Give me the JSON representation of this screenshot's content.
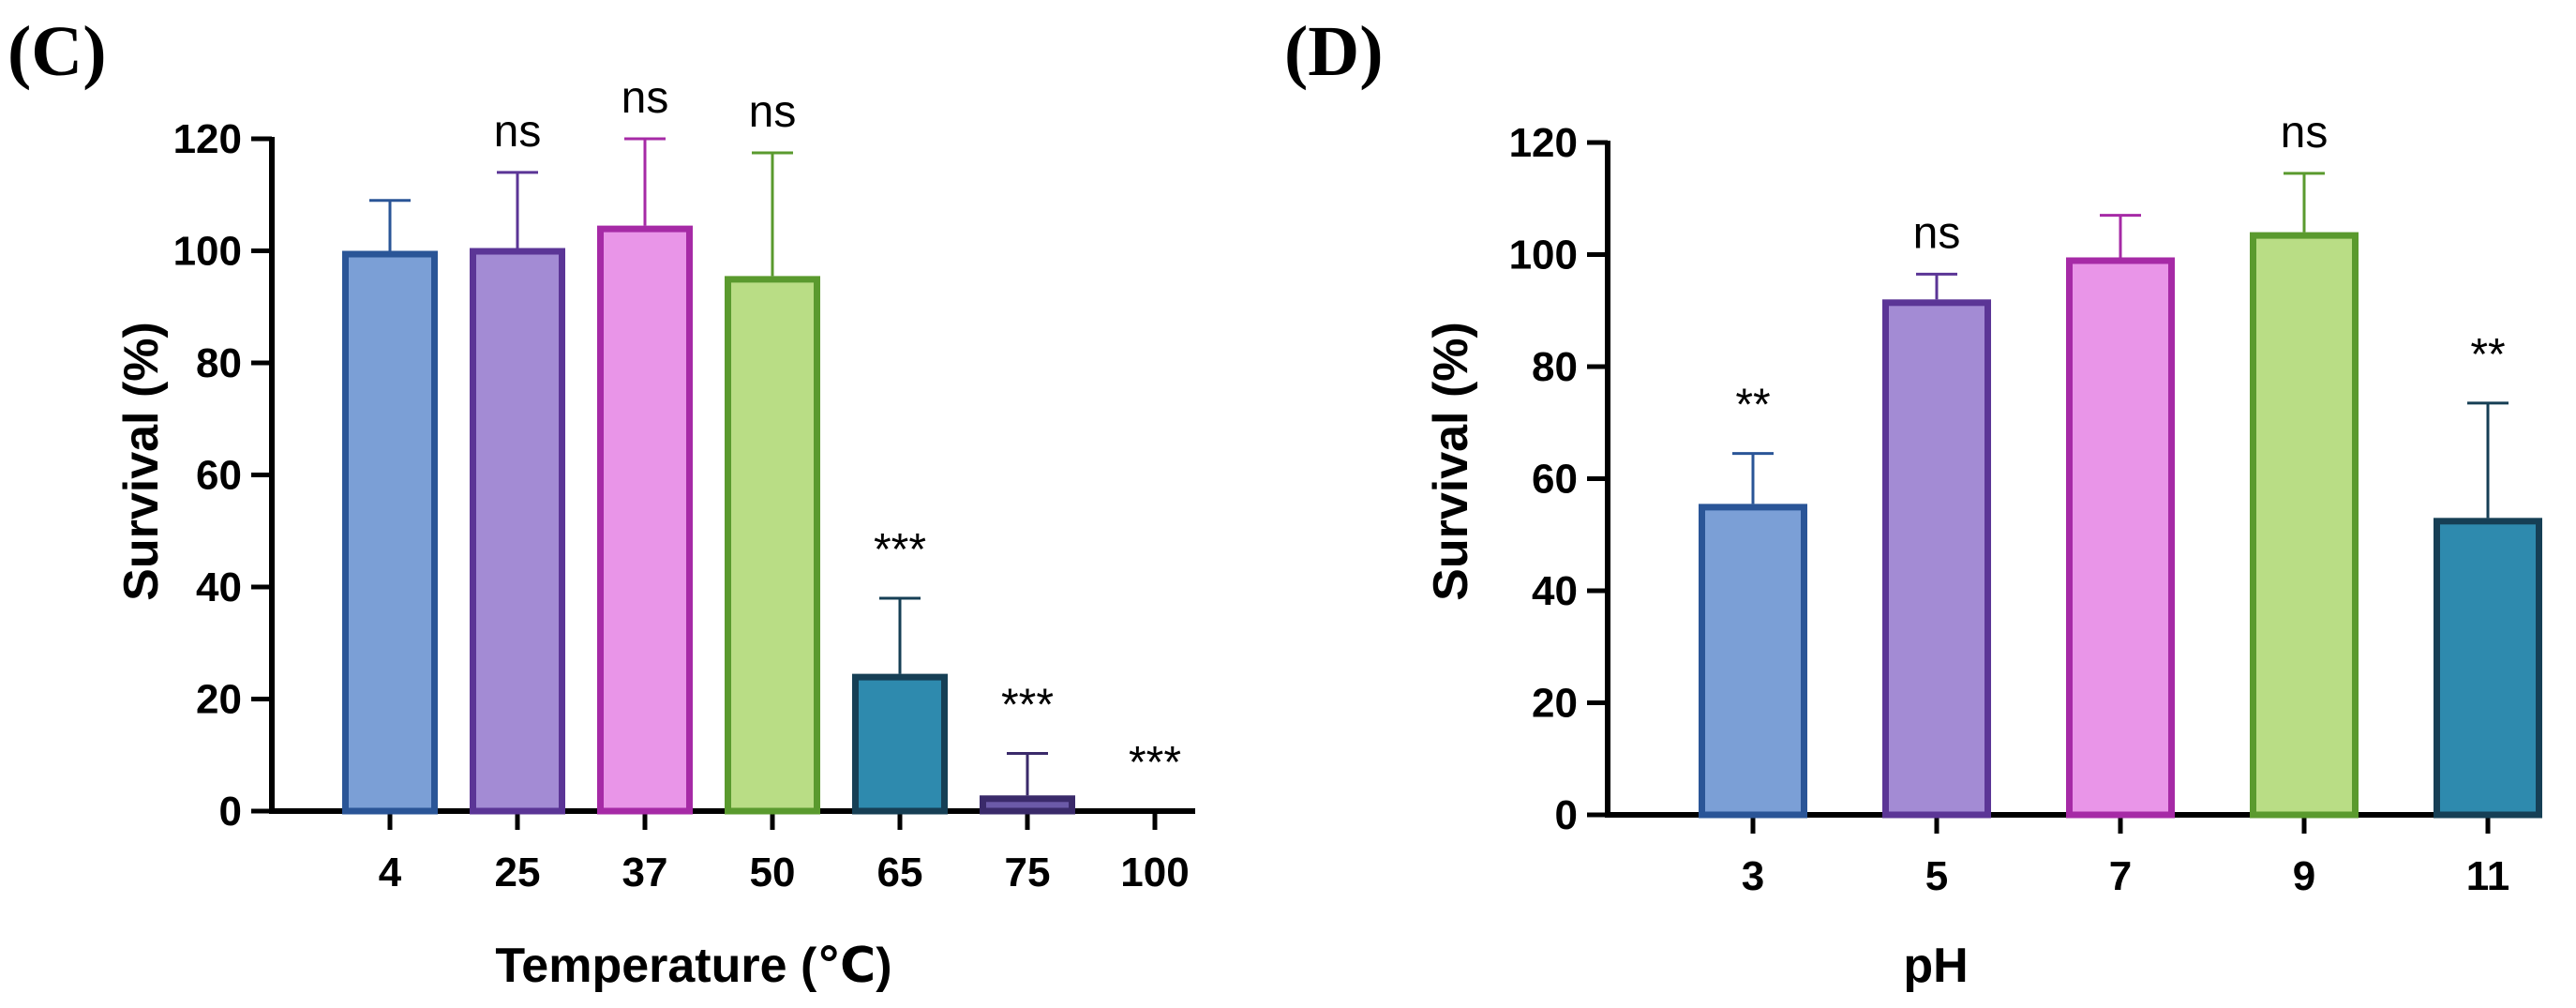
{
  "chart_data": [
    {
      "type": "bar",
      "panel_label": "(C)",
      "categories": [
        "4",
        "25",
        "37",
        "50",
        "65",
        "75",
        "100"
      ],
      "values": [
        100,
        100.5,
        104.5,
        95.5,
        24.5,
        2.8,
        0
      ],
      "error": [
        9,
        13.5,
        15.5,
        22,
        13.5,
        7.5,
        0
      ],
      "significance": [
        "",
        "ns",
        "ns",
        "ns",
        "***",
        "***",
        "***"
      ],
      "fill_colors": [
        "#7b9fd6",
        "#a38bd4",
        "#e995e8",
        "#b9dd85",
        "#2e8aae",
        "#6b5aa8",
        "#ffffff"
      ],
      "edge_colors": [
        "#2a5597",
        "#5b3596",
        "#a62aa6",
        "#5a9a2e",
        "#163f55",
        "#3a2a6a",
        "#000000"
      ],
      "xlabel": "Temperature (℃)",
      "ylabel": "Survival (%)",
      "ylim": [
        0,
        120
      ],
      "yticks": [
        0,
        20,
        40,
        60,
        80,
        100,
        120
      ],
      "grid": false
    },
    {
      "type": "bar",
      "panel_label": "(D)",
      "categories": [
        "3",
        "5",
        "7",
        "9",
        "11"
      ],
      "values": [
        55.5,
        92,
        99.5,
        104,
        53
      ],
      "error": [
        9,
        4.5,
        7.5,
        10.5,
        20.5
      ],
      "significance": [
        "**",
        "ns",
        "",
        "ns",
        "**"
      ],
      "fill_colors": [
        "#7b9fd6",
        "#a38bd4",
        "#e995e8",
        "#b9dd85",
        "#2e8aae"
      ],
      "edge_colors": [
        "#2a5597",
        "#5b3596",
        "#a62aa6",
        "#5a9a2e",
        "#163f55"
      ],
      "xlabel": "pH",
      "ylabel": "Survival (%)",
      "ylim": [
        0,
        120
      ],
      "yticks": [
        0,
        20,
        40,
        60,
        80,
        100,
        120
      ],
      "grid": false
    }
  ]
}
